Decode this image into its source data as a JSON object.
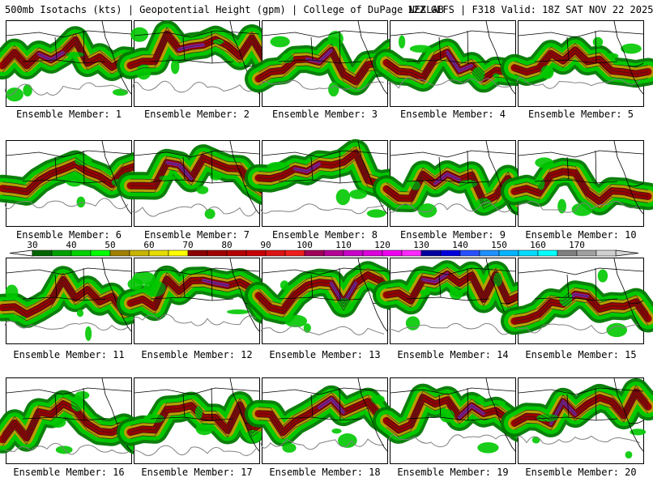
{
  "title": {
    "left": "500mb Isotachs (kts) | Geopotential Height (gpm) | College of DuPage NEXLAB",
    "right": "12Z GEFS | F318 Valid: 18Z SAT NOV 22 2025"
  },
  "members": [
    {
      "label": "Ensemble Member: 1"
    },
    {
      "label": "Ensemble Member: 2"
    },
    {
      "label": "Ensemble Member: 3"
    },
    {
      "label": "Ensemble Member: 4"
    },
    {
      "label": "Ensemble Member: 5"
    },
    {
      "label": "Ensemble Member: 6"
    },
    {
      "label": "Ensemble Member: 7"
    },
    {
      "label": "Ensemble Member: 8"
    },
    {
      "label": "Ensemble Member: 9"
    },
    {
      "label": "Ensemble Member: 10"
    },
    {
      "label": "Ensemble Member: 11"
    },
    {
      "label": "Ensemble Member: 12"
    },
    {
      "label": "Ensemble Member: 13"
    },
    {
      "label": "Ensemble Member: 14"
    },
    {
      "label": "Ensemble Member: 15"
    },
    {
      "label": "Ensemble Member: 16"
    },
    {
      "label": "Ensemble Member: 17"
    },
    {
      "label": "Ensemble Member: 18"
    },
    {
      "label": "Ensemble Member: 19"
    },
    {
      "label": "Ensemble Member: 20"
    }
  ],
  "colorbar": {
    "tick_labels": [
      "30",
      "40",
      "50",
      "60",
      "70",
      "80",
      "90",
      "100",
      "110",
      "120",
      "130",
      "140",
      "150",
      "160",
      "170"
    ],
    "colors": [
      "#006400",
      "#00a000",
      "#00d200",
      "#00ff00",
      "#a08000",
      "#c8b400",
      "#e6dc00",
      "#ffff00",
      "#8b0000",
      "#a00000",
      "#b40000",
      "#c80000",
      "#dc1414",
      "#f01e1e",
      "#a0005a",
      "#b40096",
      "#c800c8",
      "#dc00dc",
      "#f000f0",
      "#ff28ff",
      "#0000a0",
      "#0000dc",
      "#2850ff",
      "#1e90ff",
      "#00b4ff",
      "#00dcff",
      "#00ffff",
      "#808080",
      "#a0a0a0",
      "#d0d0d0"
    ]
  },
  "palette": {
    "green_dark": "#007800",
    "green": "#00c800",
    "olive": "#b4a000",
    "dark_red": "#960000",
    "purple": "#8020a0",
    "map_line": "#000000",
    "height_line": "#808080"
  }
}
